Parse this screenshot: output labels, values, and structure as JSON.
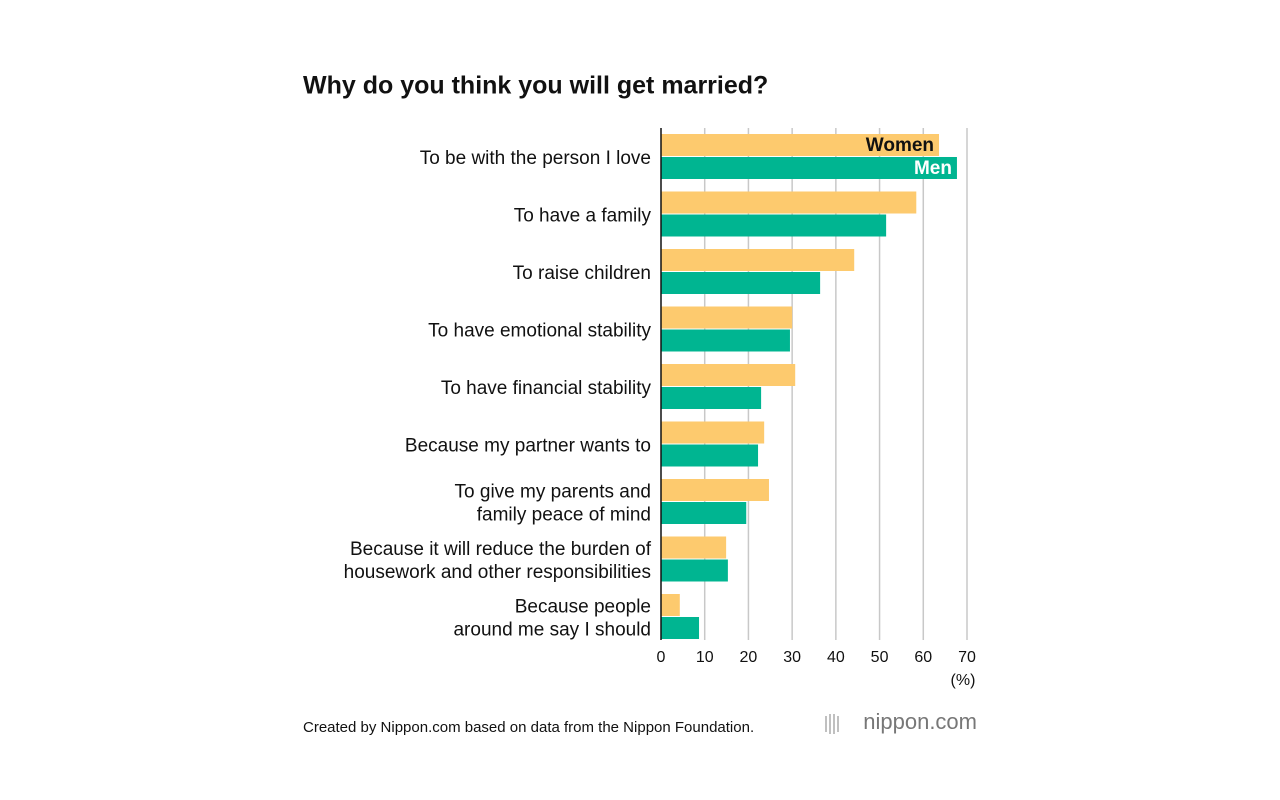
{
  "chart_data": {
    "type": "hbar",
    "title": "Why do you think you will get married?",
    "categories": [
      "To be with the person I love",
      "To have a family",
      "To raise children",
      "To have emotional stability",
      "To have financial stability",
      "Because my partner wants to",
      "To give my parents and\nfamily peace of mind",
      "Because it will reduce the burden of\nhousework and other responsibilities",
      "Because people\naround me say I should"
    ],
    "series": [
      {
        "name": "Women",
        "color": "#fdca6e",
        "label_color": "#111111",
        "values": [
          63.6,
          58.4,
          44.2,
          30.0,
          30.7,
          23.6,
          24.7,
          14.9,
          4.3
        ]
      },
      {
        "name": "Men",
        "color": "#00b591",
        "label_color": "#ffffff",
        "values": [
          67.7,
          51.5,
          36.4,
          29.5,
          22.9,
          22.2,
          19.5,
          15.3,
          8.7
        ]
      }
    ],
    "xlim": [
      0,
      70
    ],
    "xticks": [
      0,
      10,
      20,
      30,
      40,
      50,
      60,
      70
    ],
    "x_label": "(%)",
    "grid": true,
    "source": "Created by Nippon.com based on data from the Nippon Foundation.",
    "logo": "nippon.com"
  }
}
